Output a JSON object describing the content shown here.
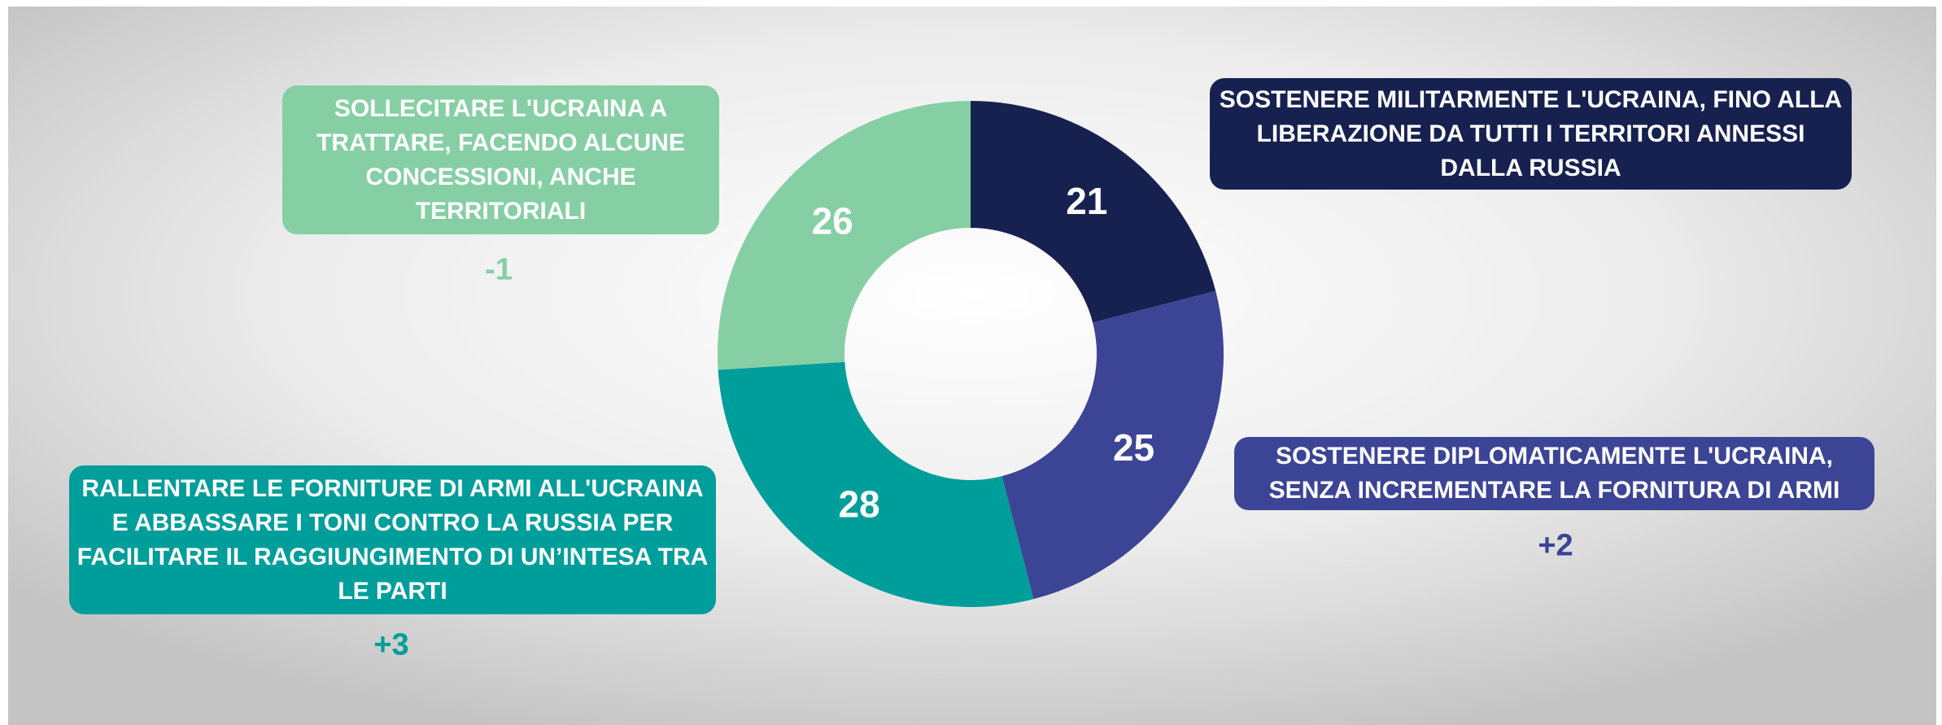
{
  "chart_data": {
    "type": "donut",
    "categories": [
      "SOSTENERE MILITARMENTE L'UCRAINA, FINO ALLA LIBERAZIONE DA TUTTI I TERRITORI ANNESSI DALLA RUSSIA",
      "SOSTENERE DIPLOMATICAMENTE L'UCRAINA, SENZA INCREMENTARE LA FORNITURA DI ARMI",
      "RALLENTARE LE FORNITURE DI ARMI ALL'UCRAINA E ABBASSARE I TONI CONTRO LA RUSSIA PER FACILITARE IL RAGGIUNGIMENTO DI UN’INTESA TRA LE PARTI",
      "SOLLECITARE L'UCRAINA A TRATTARE, FACENDO ALCUNE CONCESSIONI, ANCHE TERRITORIALI"
    ],
    "values": [
      21,
      25,
      28,
      26
    ],
    "colors": [
      "#172150",
      "#3c4496",
      "#009e9a",
      "#86cfa5"
    ],
    "changes": [
      null,
      {
        "value": 2,
        "label": "+2"
      },
      {
        "value": 3,
        "label": "+3"
      },
      -1
    ]
  }
}
